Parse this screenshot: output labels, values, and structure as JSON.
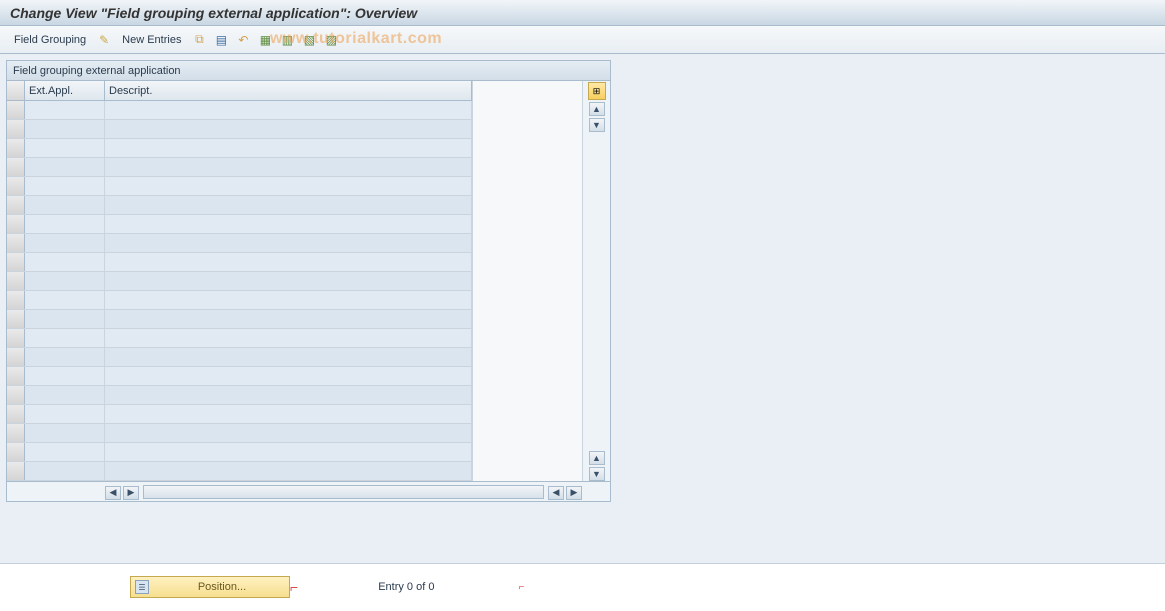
{
  "title": "Change View \"Field grouping external application\": Overview",
  "toolbar": {
    "field_grouping": "Field Grouping",
    "new_entries": "New Entries"
  },
  "watermark": "www.tutorialkart.com",
  "panel": {
    "header": "Field grouping external application",
    "columns": {
      "ext_appl": "Ext.Appl.",
      "descript": "Descript."
    },
    "row_count": 20
  },
  "footer": {
    "position_label": "Position...",
    "entry_label": "Entry 0 of 0"
  },
  "colors": {
    "titlebar_top": "#f2f5f8",
    "titlebar_bottom": "#c9d7e3",
    "content_bg": "#e9eff4",
    "border": "#a9bccd",
    "cell_bg": "#e1eaf2",
    "button_yellow": "#f6df8f"
  }
}
